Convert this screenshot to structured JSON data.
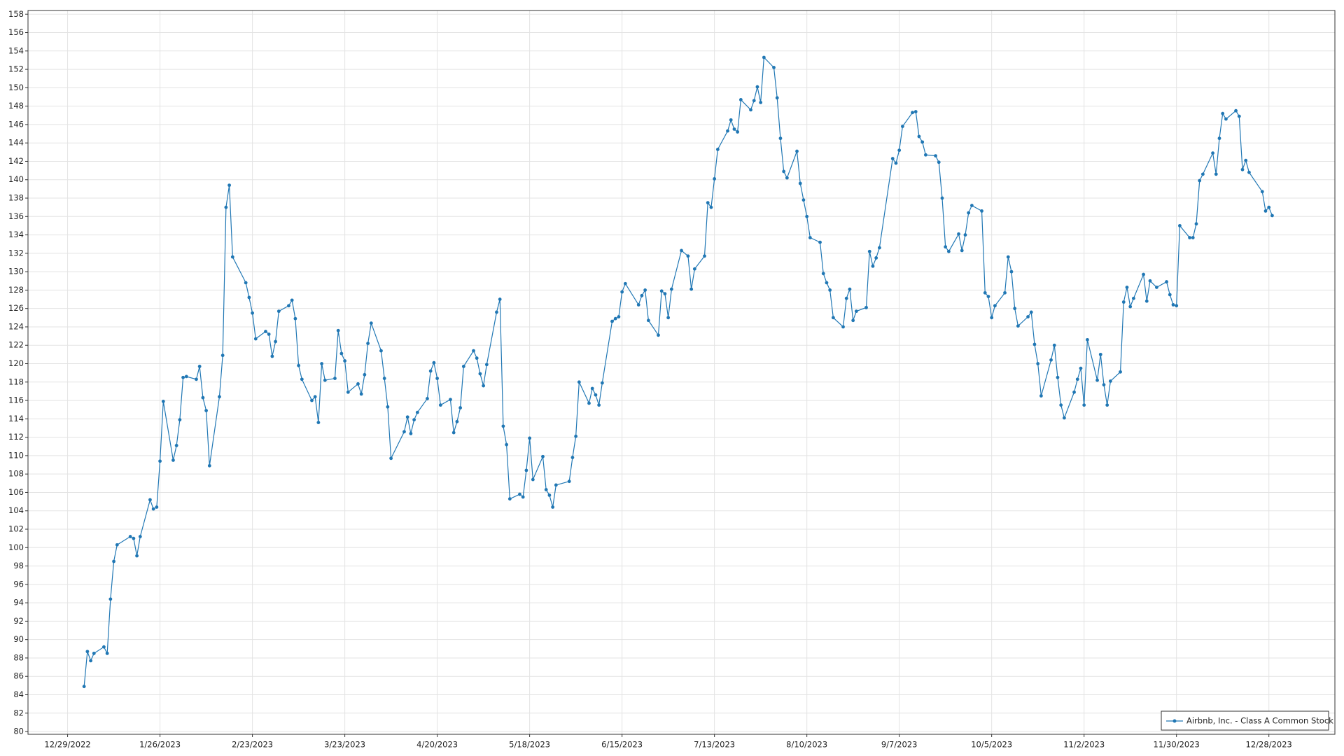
{
  "chart_data": {
    "type": "line",
    "x": [
      "2023-01-03",
      "2023-01-04",
      "2023-01-05",
      "2023-01-06",
      "2023-01-09",
      "2023-01-10",
      "2023-01-11",
      "2023-01-12",
      "2023-01-13",
      "2023-01-17",
      "2023-01-18",
      "2023-01-19",
      "2023-01-20",
      "2023-01-23",
      "2023-01-24",
      "2023-01-25",
      "2023-01-26",
      "2023-01-27",
      "2023-01-30",
      "2023-01-31",
      "2023-02-01",
      "2023-02-02",
      "2023-02-03",
      "2023-02-06",
      "2023-02-07",
      "2023-02-08",
      "2023-02-09",
      "2023-02-10",
      "2023-02-13",
      "2023-02-14",
      "2023-02-15",
      "2023-02-16",
      "2023-02-17",
      "2023-02-21",
      "2023-02-22",
      "2023-02-23",
      "2023-02-24",
      "2023-02-27",
      "2023-02-28",
      "2023-03-01",
      "2023-03-02",
      "2023-03-03",
      "2023-03-06",
      "2023-03-07",
      "2023-03-08",
      "2023-03-09",
      "2023-03-10",
      "2023-03-13",
      "2023-03-14",
      "2023-03-15",
      "2023-03-16",
      "2023-03-17",
      "2023-03-20",
      "2023-03-21",
      "2023-03-22",
      "2023-03-23",
      "2023-03-24",
      "2023-03-27",
      "2023-03-28",
      "2023-03-29",
      "2023-03-30",
      "2023-03-31",
      "2023-04-03",
      "2023-04-04",
      "2023-04-05",
      "2023-04-06",
      "2023-04-10",
      "2023-04-11",
      "2023-04-12",
      "2023-04-13",
      "2023-04-14",
      "2023-04-17",
      "2023-04-18",
      "2023-04-19",
      "2023-04-20",
      "2023-04-21",
      "2023-04-24",
      "2023-04-25",
      "2023-04-26",
      "2023-04-27",
      "2023-04-28",
      "2023-05-01",
      "2023-05-02",
      "2023-05-03",
      "2023-05-04",
      "2023-05-05",
      "2023-05-08",
      "2023-05-09",
      "2023-05-10",
      "2023-05-11",
      "2023-05-12",
      "2023-05-15",
      "2023-05-16",
      "2023-05-17",
      "2023-05-18",
      "2023-05-19",
      "2023-05-22",
      "2023-05-23",
      "2023-05-24",
      "2023-05-25",
      "2023-05-26",
      "2023-05-30",
      "2023-05-31",
      "2023-06-01",
      "2023-06-02",
      "2023-06-05",
      "2023-06-06",
      "2023-06-07",
      "2023-06-08",
      "2023-06-09",
      "2023-06-12",
      "2023-06-13",
      "2023-06-14",
      "2023-06-15",
      "2023-06-16",
      "2023-06-20",
      "2023-06-21",
      "2023-06-22",
      "2023-06-23",
      "2023-06-26",
      "2023-06-27",
      "2023-06-28",
      "2023-06-29",
      "2023-06-30",
      "2023-07-03",
      "2023-07-05",
      "2023-07-06",
      "2023-07-07",
      "2023-07-10",
      "2023-07-11",
      "2023-07-12",
      "2023-07-13",
      "2023-07-14",
      "2023-07-17",
      "2023-07-18",
      "2023-07-19",
      "2023-07-20",
      "2023-07-21",
      "2023-07-24",
      "2023-07-25",
      "2023-07-26",
      "2023-07-27",
      "2023-07-28",
      "2023-07-31",
      "2023-08-01",
      "2023-08-02",
      "2023-08-03",
      "2023-08-04",
      "2023-08-07",
      "2023-08-08",
      "2023-08-09",
      "2023-08-10",
      "2023-08-11",
      "2023-08-14",
      "2023-08-15",
      "2023-08-16",
      "2023-08-17",
      "2023-08-18",
      "2023-08-21",
      "2023-08-22",
      "2023-08-23",
      "2023-08-24",
      "2023-08-25",
      "2023-08-28",
      "2023-08-29",
      "2023-08-30",
      "2023-08-31",
      "2023-09-01",
      "2023-09-05",
      "2023-09-06",
      "2023-09-07",
      "2023-09-08",
      "2023-09-11",
      "2023-09-12",
      "2023-09-13",
      "2023-09-14",
      "2023-09-15",
      "2023-09-18",
      "2023-09-19",
      "2023-09-20",
      "2023-09-21",
      "2023-09-22",
      "2023-09-25",
      "2023-09-26",
      "2023-09-27",
      "2023-09-28",
      "2023-09-29",
      "2023-10-02",
      "2023-10-03",
      "2023-10-04",
      "2023-10-05",
      "2023-10-06",
      "2023-10-09",
      "2023-10-10",
      "2023-10-11",
      "2023-10-12",
      "2023-10-13",
      "2023-10-16",
      "2023-10-17",
      "2023-10-18",
      "2023-10-19",
      "2023-10-20",
      "2023-10-23",
      "2023-10-24",
      "2023-10-25",
      "2023-10-26",
      "2023-10-27",
      "2023-10-30",
      "2023-10-31",
      "2023-11-01",
      "2023-11-02",
      "2023-11-03",
      "2023-11-06",
      "2023-11-07",
      "2023-11-08",
      "2023-11-09",
      "2023-11-10",
      "2023-11-13",
      "2023-11-14",
      "2023-11-15",
      "2023-11-16",
      "2023-11-17",
      "2023-11-20",
      "2023-11-21",
      "2023-11-22",
      "2023-11-24",
      "2023-11-27",
      "2023-11-28",
      "2023-11-29",
      "2023-11-30",
      "2023-12-01",
      "2023-12-04",
      "2023-12-05",
      "2023-12-06",
      "2023-12-07",
      "2023-12-08",
      "2023-12-11",
      "2023-12-12",
      "2023-12-13",
      "2023-12-14",
      "2023-12-15",
      "2023-12-18",
      "2023-12-19",
      "2023-12-20",
      "2023-12-21",
      "2023-12-22",
      "2023-12-26",
      "2023-12-27",
      "2023-12-28",
      "2023-12-29"
    ],
    "series": [
      {
        "name": "Airbnb, Inc. - Class A Common Stock",
        "color": "#2077b4",
        "values": [
          84.9,
          88.7,
          87.7,
          88.5,
          89.2,
          88.5,
          94.4,
          98.5,
          100.3,
          101.2,
          101.0,
          99.1,
          101.2,
          105.2,
          104.2,
          104.4,
          109.4,
          115.9,
          109.5,
          111.1,
          113.9,
          118.5,
          118.6,
          118.3,
          119.7,
          116.3,
          114.9,
          108.9,
          116.4,
          120.9,
          137.0,
          139.4,
          131.6,
          128.8,
          127.2,
          125.5,
          122.7,
          123.5,
          123.2,
          120.8,
          122.4,
          125.7,
          126.3,
          126.9,
          124.9,
          119.8,
          118.3,
          116.0,
          116.4,
          113.6,
          120.0,
          118.2,
          118.4,
          123.6,
          121.1,
          120.3,
          116.9,
          117.8,
          116.7,
          118.8,
          122.2,
          124.4,
          121.4,
          118.4,
          115.3,
          109.7,
          112.6,
          114.2,
          112.4,
          113.9,
          114.7,
          116.2,
          119.2,
          120.1,
          118.4,
          115.5,
          116.1,
          112.5,
          113.7,
          115.2,
          119.7,
          121.4,
          120.6,
          118.9,
          117.6,
          119.9,
          125.6,
          127.0,
          113.2,
          111.2,
          105.3,
          105.8,
          105.5,
          108.4,
          111.9,
          107.4,
          109.9,
          106.3,
          105.7,
          104.4,
          106.8,
          107.2,
          109.8,
          112.1,
          118.0,
          115.7,
          117.3,
          116.6,
          115.5,
          117.9,
          124.6,
          124.9,
          125.1,
          127.8,
          128.7,
          126.4,
          127.4,
          128.0,
          124.7,
          123.1,
          127.9,
          127.6,
          125.0,
          128.1,
          132.3,
          131.7,
          128.1,
          130.3,
          131.7,
          137.5,
          137.0,
          140.1,
          143.3,
          145.3,
          146.5,
          145.5,
          145.2,
          148.7,
          147.6,
          148.6,
          150.1,
          148.4,
          153.3,
          152.2,
          148.9,
          144.5,
          140.9,
          140.2,
          143.1,
          139.6,
          137.8,
          136.0,
          133.7,
          133.2,
          129.8,
          128.8,
          128.0,
          125.0,
          124.0,
          127.1,
          128.1,
          124.7,
          125.7,
          126.1,
          132.2,
          130.6,
          131.5,
          132.6,
          142.3,
          141.8,
          143.2,
          145.8,
          147.3,
          147.4,
          144.7,
          144.1,
          142.7,
          142.6,
          141.9,
          138.0,
          132.7,
          132.2,
          134.1,
          132.3,
          134.0,
          136.4,
          137.2,
          136.6,
          127.7,
          127.3,
          125.0,
          126.3,
          127.7,
          131.6,
          130.0,
          126.0,
          124.1,
          125.1,
          125.6,
          122.1,
          120.0,
          116.5,
          120.4,
          122.0,
          118.5,
          115.5,
          114.1,
          116.9,
          118.3,
          119.5,
          115.5,
          122.6,
          118.2,
          121.0,
          117.7,
          115.5,
          118.1,
          119.1,
          126.7,
          128.3,
          126.2,
          127.1,
          129.7,
          126.8,
          129.0,
          128.3,
          128.9,
          127.5,
          126.4,
          126.3,
          135.0,
          133.7,
          133.7,
          135.2,
          139.9,
          140.6,
          142.9,
          140.6,
          144.5,
          147.2,
          146.6,
          147.5,
          146.9,
          141.1,
          142.1,
          140.8,
          138.7,
          136.6,
          137.0,
          136.1
        ]
      }
    ],
    "xlim": [
      "2022-12-17",
      "2024-01-17"
    ],
    "xticks": [
      {
        "value": "2022-12-29",
        "label": "12/29/2022"
      },
      {
        "value": "2023-01-26",
        "label": "1/26/2023"
      },
      {
        "value": "2023-02-23",
        "label": "2/23/2023"
      },
      {
        "value": "2023-03-23",
        "label": "3/23/2023"
      },
      {
        "value": "2023-04-20",
        "label": "4/20/2023"
      },
      {
        "value": "2023-05-18",
        "label": "5/18/2023"
      },
      {
        "value": "2023-06-15",
        "label": "6/15/2023"
      },
      {
        "value": "2023-07-13",
        "label": "7/13/2023"
      },
      {
        "value": "2023-08-10",
        "label": "8/10/2023"
      },
      {
        "value": "2023-09-07",
        "label": "9/7/2023"
      },
      {
        "value": "2023-10-05",
        "label": "10/5/2023"
      },
      {
        "value": "2023-11-02",
        "label": "11/2/2023"
      },
      {
        "value": "2023-11-30",
        "label": "11/30/2023"
      },
      {
        "value": "2023-12-28",
        "label": "12/28/2023"
      }
    ],
    "ylim": [
      79.7,
      158.4
    ],
    "yticks": [
      80,
      82,
      84,
      86,
      88,
      90,
      92,
      94,
      96,
      98,
      100,
      102,
      104,
      106,
      108,
      110,
      112,
      114,
      116,
      118,
      120,
      122,
      124,
      126,
      128,
      130,
      132,
      134,
      136,
      138,
      140,
      142,
      144,
      146,
      148,
      150,
      152,
      154,
      156,
      158
    ],
    "grid": true,
    "legend": "lower right"
  }
}
